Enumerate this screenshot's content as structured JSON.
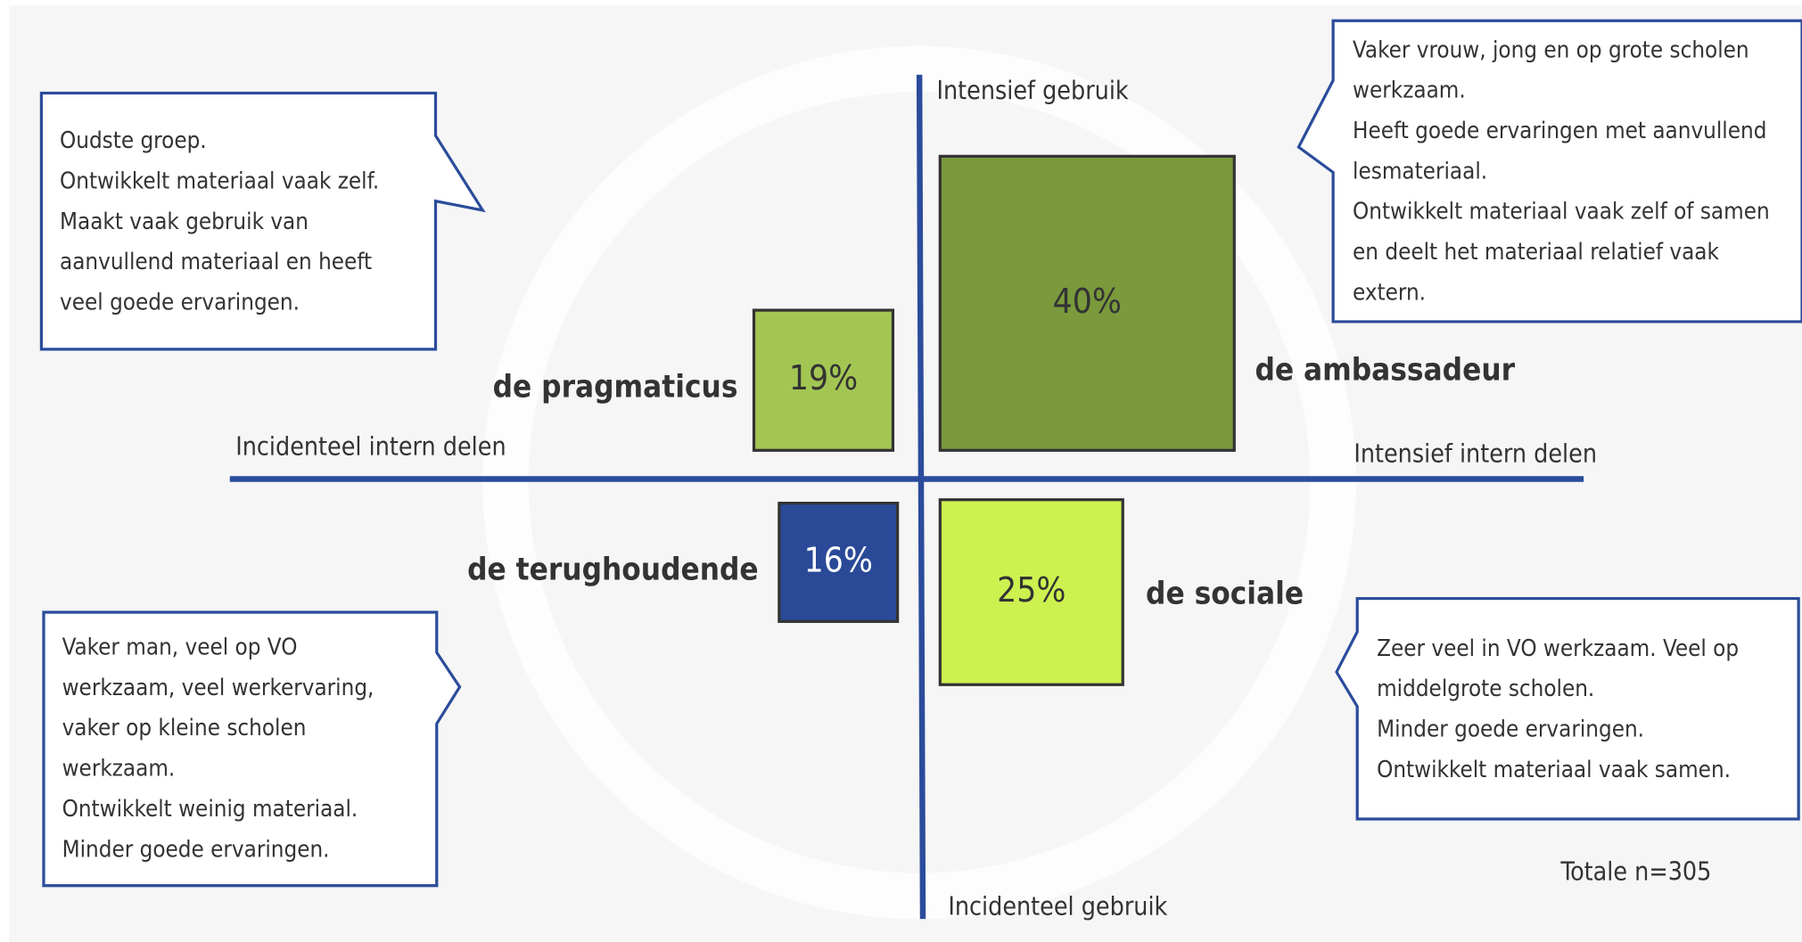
{
  "axes": {
    "top": "Intensief gebruik",
    "bottom": "Incidenteel gebruik",
    "left": "Incidenteel intern delen",
    "right": "Intensief intern delen"
  },
  "quadrants": [
    {
      "name": "de ambassadeur",
      "percent": "40%",
      "description": [
        "Vaker vrouw, jong en op grote scholen",
        "werkzaam.",
        "Heeft goede ervaringen met aanvullend",
        "lesmateriaal.",
        "Ontwikkelt materiaal vaak zelf of samen",
        "en deelt het materiaal relatief vaak",
        "extern."
      ]
    },
    {
      "name": "de pragmaticus",
      "percent": "19%",
      "description": [
        "Oudste groep.",
        "Ontwikkelt materiaal vaak zelf.",
        "Maakt vaak gebruik van",
        "aanvullend materiaal en heeft",
        "veel goede ervaringen."
      ]
    },
    {
      "name": "de terughoudende",
      "percent": "16%",
      "description": [
        "Vaker man, veel op VO",
        "werkzaam, veel werkervaring,",
        "vaker op kleine scholen",
        "werkzaam.",
        "Ontwikkelt weinig materiaal.",
        "Minder goede ervaringen."
      ]
    },
    {
      "name": "de sociale",
      "percent": "25%",
      "description": [
        "Zeer veel in VO werkzaam. Veel op",
        "middelgrote scholen.",
        "Minder goede ervaringen.",
        "Ontwikkelt materiaal vaak samen."
      ]
    }
  ],
  "footnote": "Totale n=305"
}
